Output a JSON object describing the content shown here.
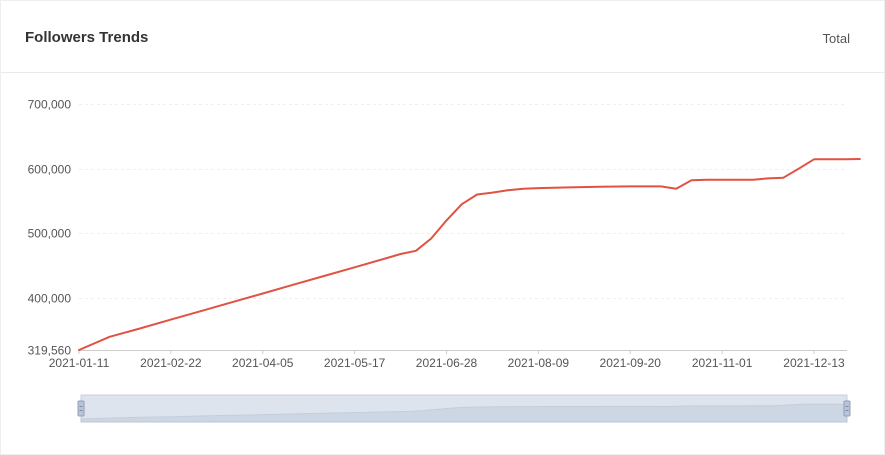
{
  "header": {
    "title": "Followers Trends",
    "mode_label": "Total"
  },
  "colors": {
    "line": "#e15241",
    "grid": "#eeeeee",
    "axis": "#cccccc",
    "zoom_fill": "#dde4ee",
    "zoom_area": "#c3cedd",
    "zoom_handle": "#b9c5d6"
  },
  "chart_data": {
    "type": "line",
    "title": "",
    "xlabel": "",
    "ylabel": "",
    "ylim": [
      319560,
      700000
    ],
    "y_ticks": [
      {
        "value": 319560,
        "label": "319,560"
      },
      {
        "value": 400000,
        "label": "400,000"
      },
      {
        "value": 500000,
        "label": "500,000"
      },
      {
        "value": 600000,
        "label": "600,000"
      },
      {
        "value": 700000,
        "label": "700,000"
      }
    ],
    "x_ticks": [
      "2021-01-11",
      "2021-02-22",
      "2021-04-05",
      "2021-05-17",
      "2021-06-28",
      "2021-08-09",
      "2021-09-20",
      "2021-11-01",
      "2021-12-13"
    ],
    "grid": true,
    "legend": "none",
    "data_zoom": true,
    "series": [
      {
        "points": [
          [
            "2021-01-11",
            319560
          ],
          [
            "2021-01-25",
            340000
          ],
          [
            "2021-02-08",
            353000
          ],
          [
            "2021-02-22",
            366500
          ],
          [
            "2021-03-08",
            380000
          ],
          [
            "2021-03-22",
            393500
          ],
          [
            "2021-04-05",
            407000
          ],
          [
            "2021-04-19",
            420500
          ],
          [
            "2021-05-03",
            434000
          ],
          [
            "2021-05-17",
            447500
          ],
          [
            "2021-05-31",
            461000
          ],
          [
            "2021-06-07",
            468000
          ],
          [
            "2021-06-14",
            473000
          ],
          [
            "2021-06-21",
            492000
          ],
          [
            "2021-06-28",
            520000
          ],
          [
            "2021-07-05",
            545000
          ],
          [
            "2021-07-12",
            560000
          ],
          [
            "2021-07-19",
            563000
          ],
          [
            "2021-07-26",
            566500
          ],
          [
            "2021-08-02",
            569000
          ],
          [
            "2021-08-09",
            570000
          ],
          [
            "2021-08-23",
            571000
          ],
          [
            "2021-09-06",
            572000
          ],
          [
            "2021-09-20",
            572500
          ],
          [
            "2021-10-04",
            572500
          ],
          [
            "2021-10-11",
            569000
          ],
          [
            "2021-10-18",
            582000
          ],
          [
            "2021-10-25",
            583000
          ],
          [
            "2021-11-01",
            583000
          ],
          [
            "2021-11-15",
            583000
          ],
          [
            "2021-11-22",
            585000
          ],
          [
            "2021-11-29",
            586000
          ],
          [
            "2021-12-06",
            600000
          ],
          [
            "2021-12-13",
            614500
          ],
          [
            "2021-12-20",
            614500
          ],
          [
            "2021-12-27",
            614500
          ],
          [
            "2022-01-03",
            615000
          ]
        ]
      }
    ]
  }
}
